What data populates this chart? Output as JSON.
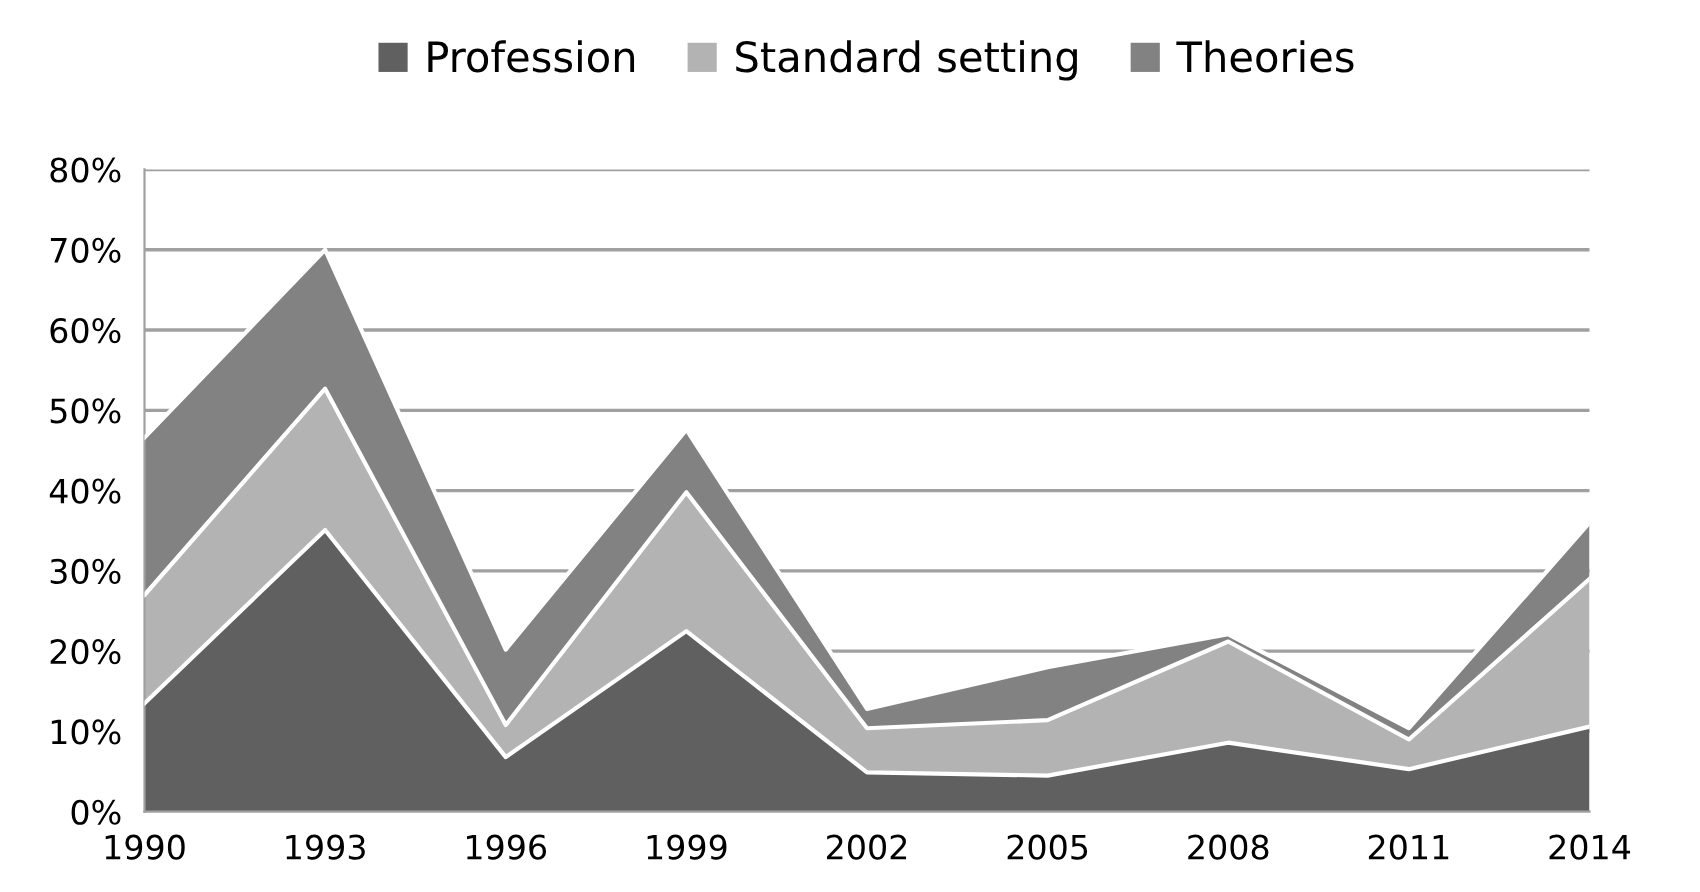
{
  "chart_data": {
    "type": "area",
    "stacked": true,
    "categories": [
      "1990",
      "1993",
      "1996",
      "1999",
      "2002",
      "2005",
      "2008",
      "2011",
      "2014"
    ],
    "series": [
      {
        "name": "Profession",
        "color": "#606060",
        "values": [
          13.5,
          35.1,
          6.8,
          22.5,
          4.9,
          4.5,
          8.6,
          5.3,
          10.6
        ]
      },
      {
        "name": "Standard setting",
        "color": "#b3b3b3",
        "values": [
          13.5,
          17.6,
          4.0,
          17.3,
          5.5,
          6.9,
          12.6,
          3.7,
          18.4
        ]
      },
      {
        "name": "Theories",
        "color": "#828282",
        "values": [
          19.6,
          17.3,
          9.4,
          7.8,
          2.4,
          6.6,
          0.9,
          1.4,
          7.0
        ]
      }
    ],
    "ylim": [
      0,
      80
    ],
    "yticks": [
      {
        "value": 0,
        "label": "0%"
      },
      {
        "value": 10,
        "label": "10%"
      },
      {
        "value": 20,
        "label": "20%"
      },
      {
        "value": 30,
        "label": "30%"
      },
      {
        "value": 40,
        "label": "40%"
      },
      {
        "value": 50,
        "label": "50%"
      },
      {
        "value": 60,
        "label": "60%"
      },
      {
        "value": 70,
        "label": "70%"
      },
      {
        "value": 80,
        "label": "80%"
      }
    ],
    "grid": "y",
    "legend": "top"
  }
}
